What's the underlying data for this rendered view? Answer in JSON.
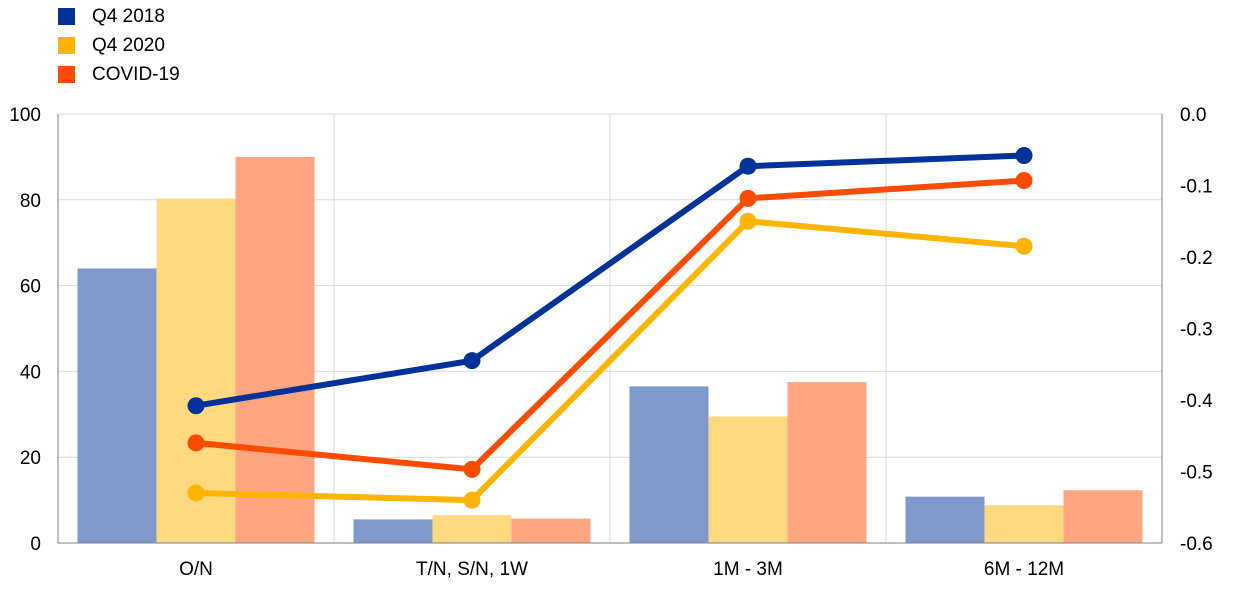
{
  "chart_data": {
    "type": "bar+line",
    "title": "",
    "categories": [
      "O/N",
      "T/N, S/N, 1W",
      "1M - 3M",
      "6M - 12M"
    ],
    "left_axis": {
      "min": 0,
      "max": 100,
      "step": 20,
      "ticks": [
        "0",
        "20",
        "40",
        "60",
        "80",
        "100"
      ]
    },
    "right_axis": {
      "min": -0.6,
      "max": 0.0,
      "step": 0.1,
      "ticks": [
        "-0.6",
        "-0.5",
        "-0.4",
        "-0.3",
        "-0.2",
        "-0.1",
        "0.0"
      ]
    },
    "grid": true,
    "legend_position": "top-left",
    "series": [
      {
        "name": "Q4 2018",
        "line_color": "#003299",
        "bar_color": "#7F99CC",
        "bar_values": [
          64,
          5.5,
          36.5,
          10.8
        ],
        "line_values": [
          -0.408,
          -0.345,
          -0.073,
          -0.058
        ]
      },
      {
        "name": "Q4 2020",
        "line_color": "#FFB400",
        "bar_color": "#FFD980",
        "bar_values": [
          80.3,
          6.5,
          29.5,
          8.8
        ],
        "line_values": [
          -0.53,
          -0.54,
          -0.15,
          -0.185
        ]
      },
      {
        "name": "COVID-19",
        "line_color": "#FF4B00",
        "bar_color": "#FFA580",
        "bar_values": [
          90,
          5.7,
          37.5,
          12.3
        ],
        "line_values": [
          -0.46,
          -0.497,
          -0.118,
          -0.093
        ]
      }
    ]
  }
}
